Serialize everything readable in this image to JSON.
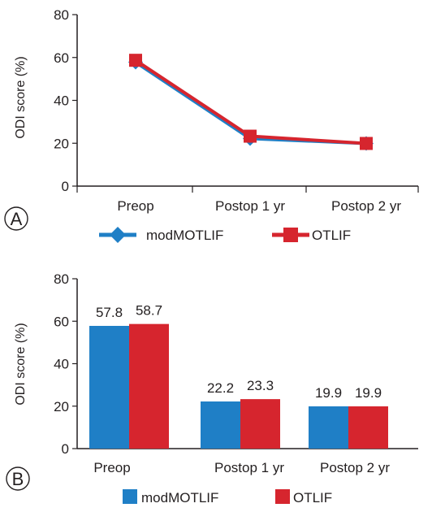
{
  "colors": {
    "modMOTLIF": "#1f7fc6",
    "OTLIF": "#d6252e",
    "axis": "#231f20"
  },
  "chart_data": [
    {
      "type": "line",
      "panel_label": "A",
      "categories": [
        "Preop",
        "Postop 1 yr",
        "Postop 2 yr"
      ],
      "ylabel": "ODI score (%)",
      "ylim": [
        0,
        80
      ],
      "yticks": [
        "0",
        "20",
        "40",
        "60",
        "80"
      ],
      "grid": false,
      "legend_position": "bottom",
      "series": [
        {
          "name": "modMOTLIF",
          "marker": "diamond",
          "values": [
            57.8,
            22.2,
            19.9
          ]
        },
        {
          "name": "OTLIF",
          "marker": "square",
          "values": [
            58.7,
            23.3,
            19.9
          ]
        }
      ]
    },
    {
      "type": "bar",
      "panel_label": "B",
      "categories": [
        "Preop",
        "Postop 1 yr",
        "Postop 2 yr"
      ],
      "ylabel": "ODI score (%)",
      "ylim": [
        0,
        80
      ],
      "yticks": [
        "0",
        "20",
        "40",
        "60",
        "80"
      ],
      "grid": false,
      "legend_position": "bottom",
      "series": [
        {
          "name": "modMOTLIF",
          "values": [
            57.8,
            22.2,
            19.9
          ],
          "labels": [
            "57.8",
            "22.2",
            "19.9"
          ]
        },
        {
          "name": "OTLIF",
          "values": [
            58.7,
            23.3,
            19.9
          ],
          "labels": [
            "58.7",
            "23.3",
            "19.9"
          ]
        }
      ]
    }
  ]
}
